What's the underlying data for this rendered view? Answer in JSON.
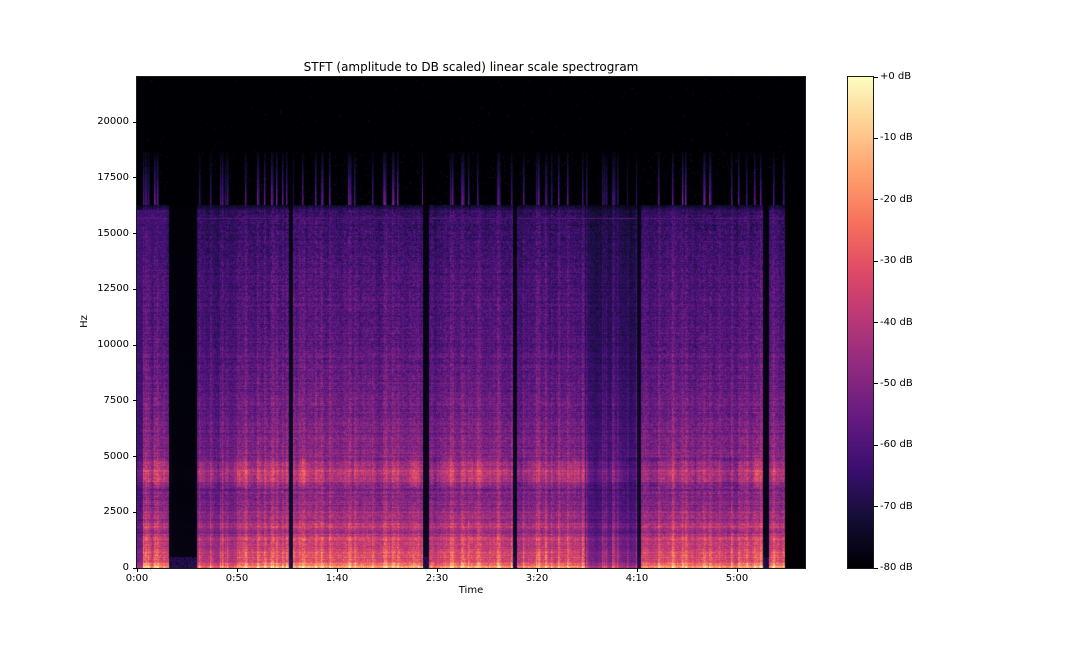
{
  "figure": {
    "background_color": "#ffffff",
    "text_color": "#000000"
  },
  "chart_data": {
    "type": "heatmap",
    "subtype": "stft-spectrogram",
    "title": "STFT (amplitude to DB scaled) linear scale spectrogram",
    "xlabel": "Time",
    "ylabel": "Hz",
    "x_range_s": [
      0,
      334
    ],
    "y_range_hz": [
      0,
      22018
    ],
    "db_range": [
      -80,
      0
    ],
    "grid": false,
    "colormap": "magma",
    "colorbar_position": "right",
    "x_ticks": [
      {
        "label": "0:00",
        "s": 0
      },
      {
        "label": "0:50",
        "s": 50
      },
      {
        "label": "1:40",
        "s": 100
      },
      {
        "label": "2:30",
        "s": 150
      },
      {
        "label": "3:20",
        "s": 200
      },
      {
        "label": "4:10",
        "s": 250
      },
      {
        "label": "5:00",
        "s": 300
      }
    ],
    "y_ticks": [
      {
        "label": "0",
        "hz": 0
      },
      {
        "label": "2500",
        "hz": 2500
      },
      {
        "label": "5000",
        "hz": 5000
      },
      {
        "label": "7500",
        "hz": 7500
      },
      {
        "label": "10000",
        "hz": 10000
      },
      {
        "label": "12500",
        "hz": 12500
      },
      {
        "label": "15000",
        "hz": 15000
      },
      {
        "label": "17500",
        "hz": 17500
      },
      {
        "label": "20000",
        "hz": 20000
      }
    ],
    "colorbar_ticks": [
      {
        "label": "+0 dB",
        "db": 0
      },
      {
        "label": "-10 dB",
        "db": -10
      },
      {
        "label": "-20 dB",
        "db": -20
      },
      {
        "label": "-30 dB",
        "db": -30
      },
      {
        "label": "-40 dB",
        "db": -40
      },
      {
        "label": "-50 dB",
        "db": -50
      },
      {
        "label": "-60 dB",
        "db": -60
      },
      {
        "label": "-70 dB",
        "db": -70
      },
      {
        "label": "-80 dB",
        "db": -80
      }
    ],
    "colormap_stops": [
      [
        0.0,
        "#000004"
      ],
      [
        0.1,
        "#140e36"
      ],
      [
        0.2,
        "#3b0f70"
      ],
      [
        0.3,
        "#641a80"
      ],
      [
        0.4,
        "#8c2981"
      ],
      [
        0.5,
        "#b73779"
      ],
      [
        0.6,
        "#de4968"
      ],
      [
        0.7,
        "#f7705c"
      ],
      [
        0.8,
        "#fe9f6d"
      ],
      [
        0.9,
        "#fecf92"
      ],
      [
        1.0,
        "#fcfdbf"
      ]
    ],
    "features": {
      "seed": 42,
      "segments_t0_t1_level": [
        [
          0,
          3,
          0.6
        ],
        [
          3,
          16,
          0.92
        ],
        [
          16,
          30,
          0.05
        ],
        [
          30,
          50,
          0.78
        ],
        [
          50,
          76,
          0.95
        ],
        [
          76,
          78,
          0.15
        ],
        [
          78,
          143,
          1.0
        ],
        [
          143,
          146,
          0.12
        ],
        [
          146,
          188,
          0.95
        ],
        [
          188,
          190,
          0.15
        ],
        [
          190,
          224,
          0.92
        ],
        [
          224,
          250,
          0.6
        ],
        [
          250,
          252,
          0.18
        ],
        [
          252,
          313,
          1.0
        ],
        [
          313,
          316,
          0.1
        ],
        [
          316,
          324,
          1.0
        ],
        [
          324,
          334,
          0.0
        ]
      ],
      "freq_db_profile": [
        [
          0,
          -16
        ],
        [
          250,
          -20
        ],
        [
          800,
          -28
        ],
        [
          1500,
          -34
        ],
        [
          3000,
          -44
        ],
        [
          3600,
          -47
        ],
        [
          3900,
          -36
        ],
        [
          4300,
          -32
        ],
        [
          4800,
          -44
        ],
        [
          7000,
          -50
        ],
        [
          10000,
          -55
        ],
        [
          14000,
          -59
        ],
        [
          16000,
          -63
        ],
        [
          16300,
          -74
        ],
        [
          18500,
          -76
        ],
        [
          18700,
          -80
        ],
        [
          22050,
          -80
        ]
      ],
      "wash_until_s": 15,
      "wash_top_hz": 16050,
      "horizontal_line_hz": 15700,
      "spike_band_hz": [
        16300,
        18650
      ],
      "bright_band_hz": [
        3600,
        4900
      ]
    }
  }
}
